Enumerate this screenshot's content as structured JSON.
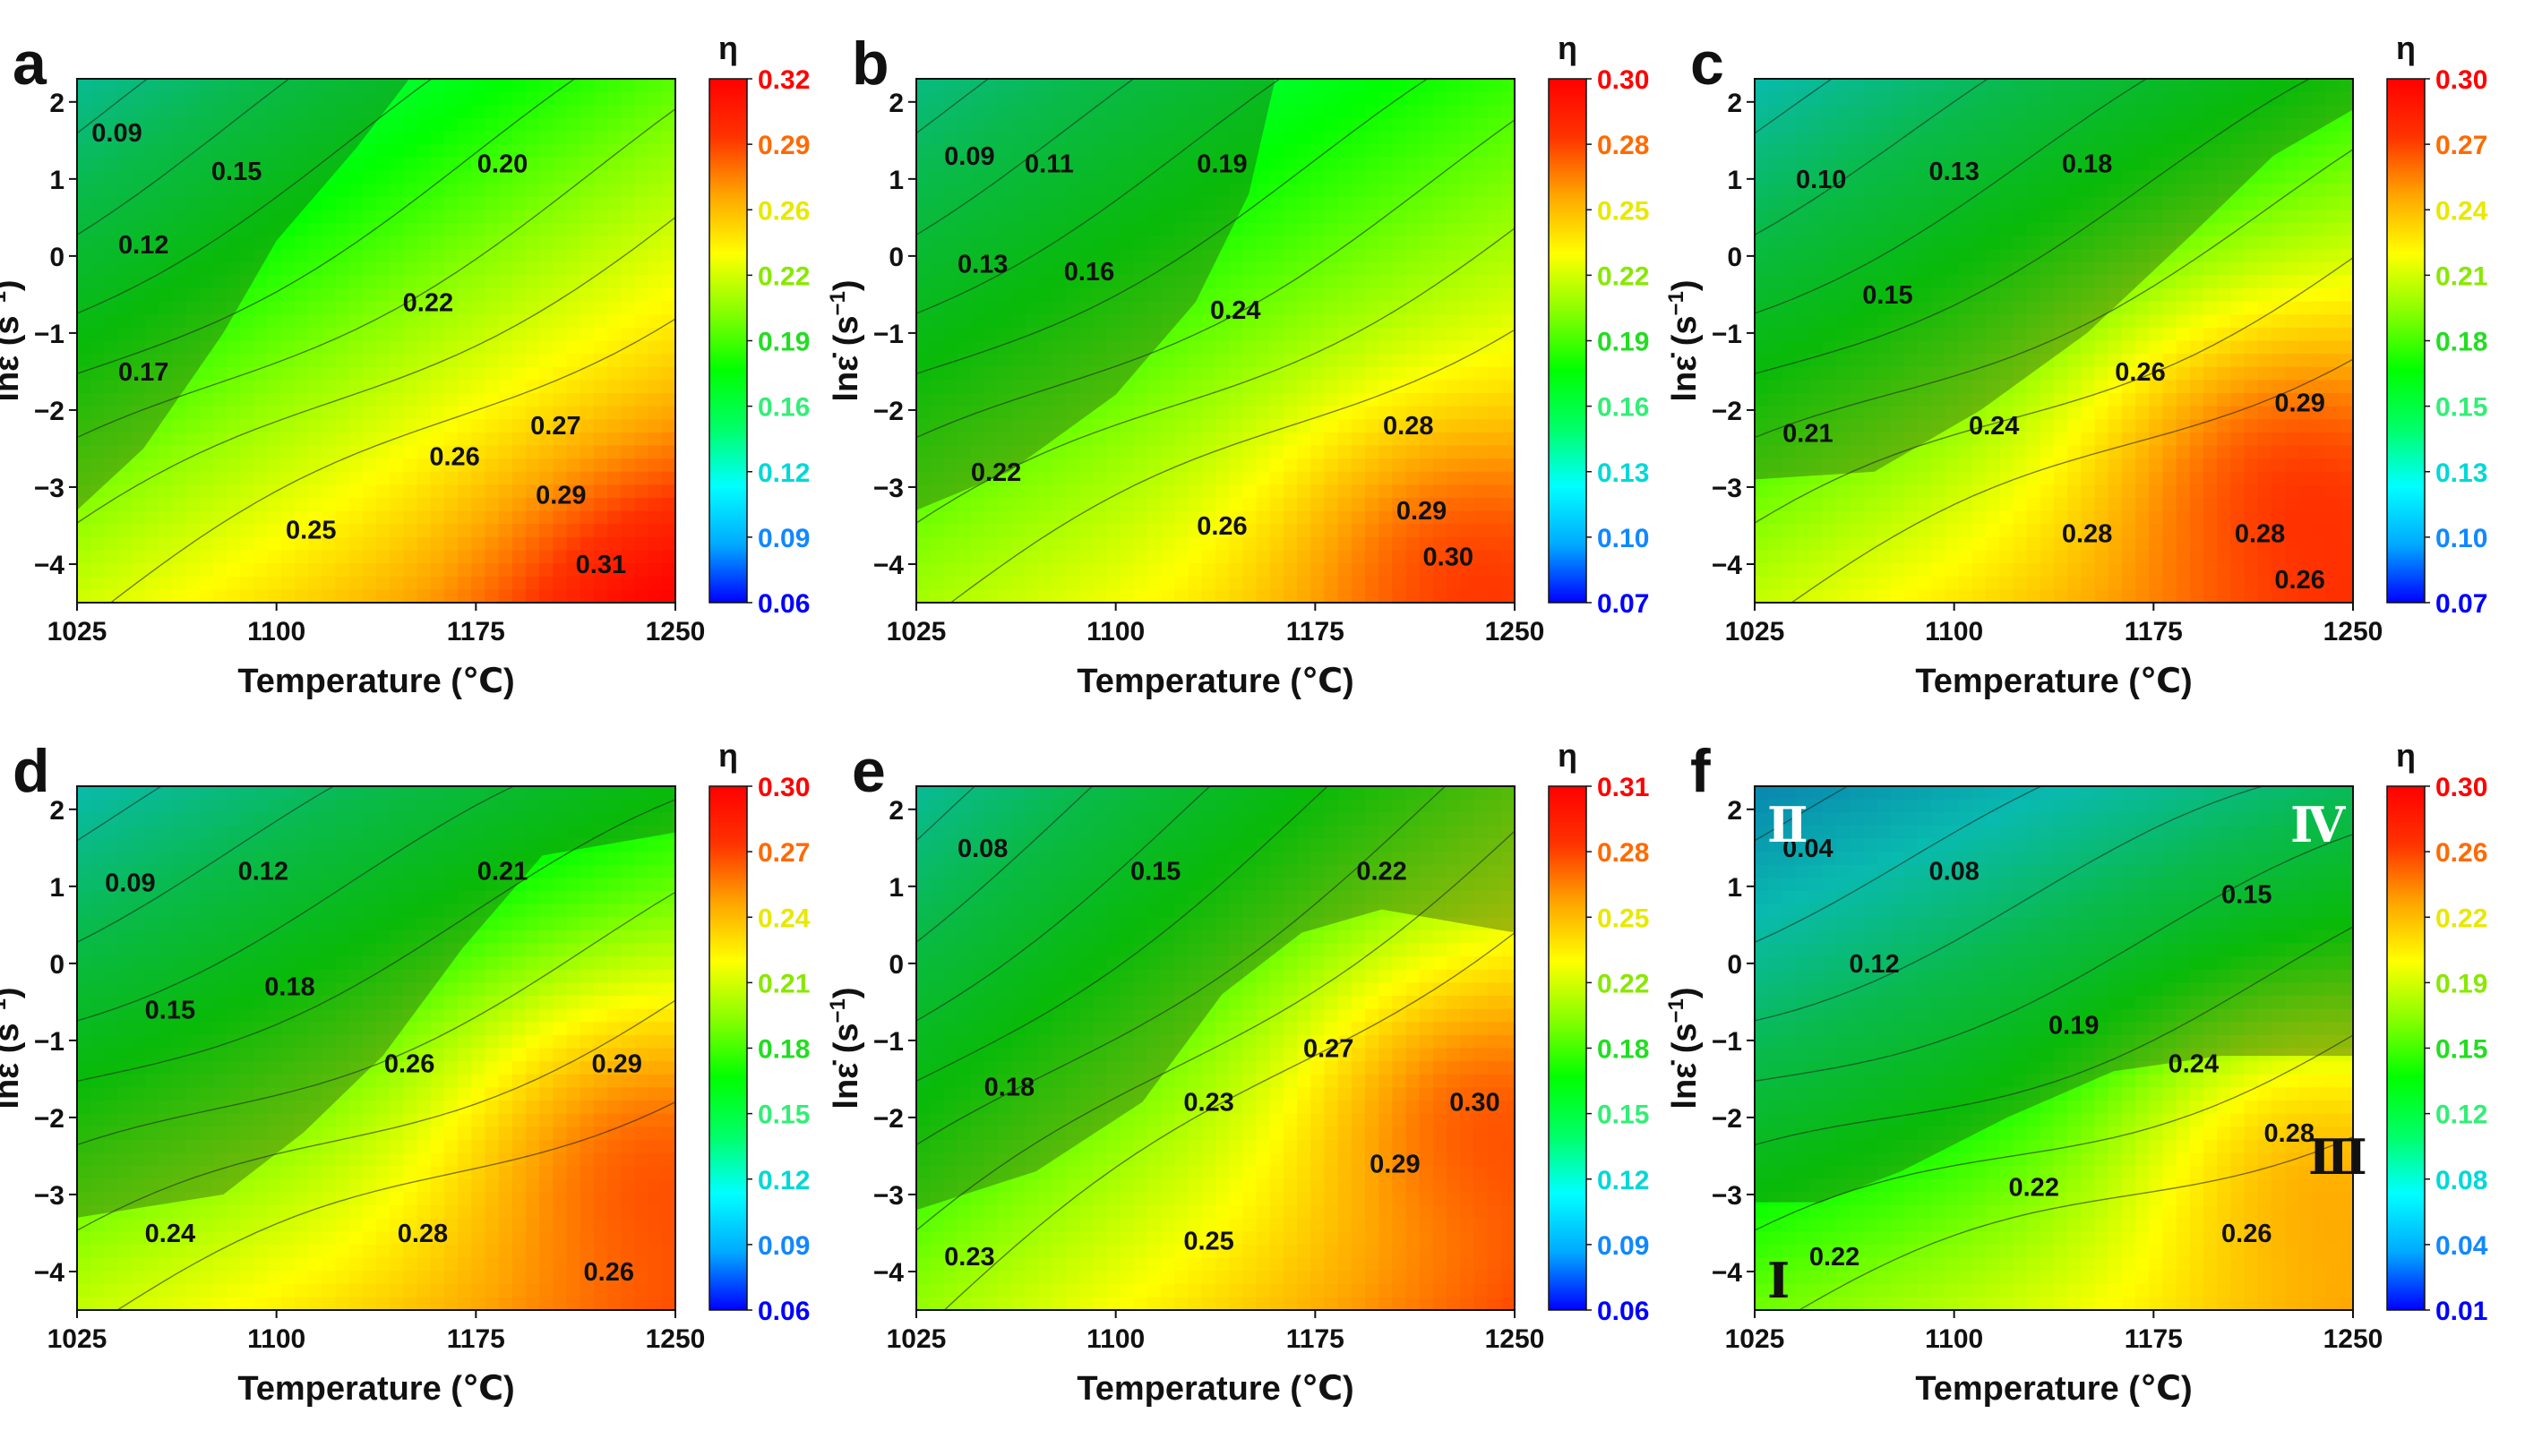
{
  "figure": {
    "xlabel": "Temperature (℃)",
    "ylabel_main": "lnε̇",
    "ylabel_unit": "(s",
    "ylabel_exp": "−1",
    "ylabel_close": ")",
    "colorbar_title": "η",
    "xticks": [
      "1025",
      "1100",
      "1175",
      "1250"
    ],
    "yticks": [
      "2",
      "1",
      "0",
      "−1",
      "−2",
      "−3",
      "−4"
    ]
  },
  "colors": {
    "colormap": [
      "#0000ff",
      "#00aaff",
      "#00ffff",
      "#00ff66",
      "#00ff00",
      "#88ff00",
      "#ffff00",
      "#ffa500",
      "#ff3300",
      "#ff0000"
    ],
    "unstable_shading": "#1a3a1a",
    "colorbar_label_colors": [
      "#ff0000",
      "#ff6a00",
      "#e8e800",
      "#88e800",
      "#22dd22",
      "#33ee77",
      "#00d8d8",
      "#1188ff",
      "#0000ff"
    ]
  },
  "chart_data": [
    {
      "panel": "a",
      "type": "heatmap",
      "xlabel": "Temperature (℃)",
      "ylabel": "lnε̇ (s⁻¹)",
      "xlim": [
        1025,
        1250
      ],
      "ylim": [
        -4.5,
        2.3
      ],
      "colorbar_title": "η",
      "colorbar_range": [
        0.06,
        0.32
      ],
      "colorbar_ticks": [
        "0.32",
        "0.29",
        "0.26",
        "0.22",
        "0.19",
        "0.16",
        "0.12",
        "0.09",
        "0.06"
      ],
      "contour_labels": [
        {
          "text": "0.09",
          "x": 1040,
          "y": 1.6
        },
        {
          "text": "0.15",
          "x": 1085,
          "y": 1.1
        },
        {
          "text": "0.20",
          "x": 1185,
          "y": 1.2
        },
        {
          "text": "0.12",
          "x": 1050,
          "y": 0.15
        },
        {
          "text": "0.22",
          "x": 1157,
          "y": -0.6
        },
        {
          "text": "0.17",
          "x": 1050,
          "y": -1.5
        },
        {
          "text": "0.27",
          "x": 1205,
          "y": -2.2
        },
        {
          "text": "0.26",
          "x": 1167,
          "y": -2.6
        },
        {
          "text": "0.29",
          "x": 1207,
          "y": -3.1
        },
        {
          "text": "0.25",
          "x": 1113,
          "y": -3.55
        },
        {
          "text": "0.31",
          "x": 1222,
          "y": -4.0
        }
      ],
      "field": {
        "bias": 0.18,
        "gx": 0.27,
        "gy": -0.38,
        "rel_lo": 0.02,
        "rel_hi": 0.99,
        "hot": {
          "x": 0.98,
          "y": 0.02,
          "amp": 0.12,
          "s": 0.28
        }
      },
      "unstable_region": [
        [
          1025,
          -3.3
        ],
        [
          1050,
          -2.5
        ],
        [
          1080,
          -1.0
        ],
        [
          1100,
          0.2
        ],
        [
          1130,
          1.4
        ],
        [
          1150,
          2.3
        ],
        [
          1025,
          2.3
        ]
      ]
    },
    {
      "panel": "b",
      "type": "heatmap",
      "xlabel": "Temperature (℃)",
      "ylabel": "lnε̇ (s⁻¹)",
      "xlim": [
        1025,
        1250
      ],
      "ylim": [
        -4.5,
        2.3
      ],
      "colorbar_title": "η",
      "colorbar_range": [
        0.07,
        0.3
      ],
      "colorbar_ticks": [
        "0.30",
        "0.28",
        "0.25",
        "0.22",
        "0.19",
        "0.16",
        "0.13",
        "0.10",
        "0.07"
      ],
      "contour_labels": [
        {
          "text": "0.09",
          "x": 1045,
          "y": 1.3
        },
        {
          "text": "0.11",
          "x": 1075,
          "y": 1.2
        },
        {
          "text": "0.19",
          "x": 1140,
          "y": 1.2
        },
        {
          "text": "0.13",
          "x": 1050,
          "y": -0.1
        },
        {
          "text": "0.16",
          "x": 1090,
          "y": -0.2
        },
        {
          "text": "0.24",
          "x": 1145,
          "y": -0.7
        },
        {
          "text": "0.22",
          "x": 1055,
          "y": -2.8
        },
        {
          "text": "0.28",
          "x": 1210,
          "y": -2.2
        },
        {
          "text": "0.29",
          "x": 1215,
          "y": -3.3
        },
        {
          "text": "0.26",
          "x": 1140,
          "y": -3.5
        },
        {
          "text": "0.30",
          "x": 1225,
          "y": -3.9
        }
      ],
      "field": {
        "bias": 0.17,
        "gx": 0.22,
        "gy": -0.32,
        "rel_lo": 0.02,
        "rel_hi": 0.99,
        "hot": {
          "x": 0.88,
          "y": 0.12,
          "amp": 0.13,
          "s": 0.28
        }
      },
      "unstable_region": [
        [
          1025,
          -3.3
        ],
        [
          1060,
          -2.8
        ],
        [
          1100,
          -1.8
        ],
        [
          1130,
          -0.6
        ],
        [
          1150,
          0.8
        ],
        [
          1160,
          2.3
        ],
        [
          1025,
          2.3
        ]
      ]
    },
    {
      "panel": "c",
      "type": "heatmap",
      "xlabel": "Temperature (℃)",
      "ylabel": "lnε̇ (s⁻¹)",
      "xlim": [
        1025,
        1250
      ],
      "ylim": [
        -4.5,
        2.3
      ],
      "colorbar_title": "η",
      "colorbar_range": [
        0.07,
        0.3
      ],
      "colorbar_ticks": [
        "0.30",
        "0.27",
        "0.24",
        "0.21",
        "0.18",
        "0.15",
        "0.13",
        "0.10",
        "0.07"
      ],
      "contour_labels": [
        {
          "text": "0.10",
          "x": 1050,
          "y": 1.0
        },
        {
          "text": "0.13",
          "x": 1100,
          "y": 1.1
        },
        {
          "text": "0.18",
          "x": 1150,
          "y": 1.2
        },
        {
          "text": "0.15",
          "x": 1075,
          "y": -0.5
        },
        {
          "text": "0.26",
          "x": 1170,
          "y": -1.5
        },
        {
          "text": "0.29",
          "x": 1230,
          "y": -1.9
        },
        {
          "text": "0.21",
          "x": 1045,
          "y": -2.3
        },
        {
          "text": "0.24",
          "x": 1115,
          "y": -2.2
        },
        {
          "text": "0.28",
          "x": 1150,
          "y": -3.6
        },
        {
          "text": "0.28",
          "x": 1215,
          "y": -3.6
        },
        {
          "text": "0.26",
          "x": 1230,
          "y": -4.2
        }
      ],
      "field": {
        "bias": 0.16,
        "gx": 0.25,
        "gy": -0.4,
        "rel_lo": 0.02,
        "rel_hi": 0.99,
        "hot": {
          "x": 0.85,
          "y": 0.3,
          "amp": 0.16,
          "s": 0.3
        }
      },
      "unstable_region": [
        [
          1025,
          -2.9
        ],
        [
          1070,
          -2.8
        ],
        [
          1110,
          -2.0
        ],
        [
          1150,
          -1.0
        ],
        [
          1190,
          0.3
        ],
        [
          1220,
          1.3
        ],
        [
          1250,
          1.9
        ],
        [
          1250,
          2.3
        ],
        [
          1025,
          2.3
        ]
      ]
    },
    {
      "panel": "d",
      "type": "heatmap",
      "xlabel": "Temperature (℃)",
      "ylabel": "lnε̇ (s⁻¹)",
      "xlim": [
        1025,
        1250
      ],
      "ylim": [
        -4.5,
        2.3
      ],
      "colorbar_title": "η",
      "colorbar_range": [
        0.06,
        0.3
      ],
      "colorbar_ticks": [
        "0.30",
        "0.27",
        "0.24",
        "0.21",
        "0.18",
        "0.15",
        "0.12",
        "0.09",
        "0.06"
      ],
      "contour_labels": [
        {
          "text": "0.09",
          "x": 1045,
          "y": 1.05
        },
        {
          "text": "0.12",
          "x": 1095,
          "y": 1.2
        },
        {
          "text": "0.21",
          "x": 1185,
          "y": 1.2
        },
        {
          "text": "0.15",
          "x": 1060,
          "y": -0.6
        },
        {
          "text": "0.18",
          "x": 1105,
          "y": -0.3
        },
        {
          "text": "0.26",
          "x": 1150,
          "y": -1.3
        },
        {
          "text": "0.29",
          "x": 1228,
          "y": -1.3
        },
        {
          "text": "0.24",
          "x": 1060,
          "y": -3.5
        },
        {
          "text": "0.28",
          "x": 1155,
          "y": -3.5
        },
        {
          "text": "0.26",
          "x": 1225,
          "y": -4.0
        }
      ],
      "field": {
        "bias": 0.16,
        "gx": 0.22,
        "gy": -0.4,
        "rel_lo": 0.02,
        "rel_hi": 0.99,
        "hot": {
          "x": 0.92,
          "y": 0.35,
          "amp": 0.16,
          "s": 0.3
        }
      },
      "unstable_region": [
        [
          1025,
          -3.3
        ],
        [
          1080,
          -3.0
        ],
        [
          1110,
          -2.2
        ],
        [
          1140,
          -1.2
        ],
        [
          1170,
          0.2
        ],
        [
          1200,
          1.4
        ],
        [
          1250,
          1.7
        ],
        [
          1250,
          2.3
        ],
        [
          1025,
          2.3
        ]
      ]
    },
    {
      "panel": "e",
      "type": "heatmap",
      "xlabel": "Temperature (℃)",
      "ylabel": "lnε̇ (s⁻¹)",
      "xlim": [
        1025,
        1250
      ],
      "ylim": [
        -4.5,
        2.3
      ],
      "colorbar_title": "η",
      "colorbar_range": [
        0.06,
        0.31
      ],
      "colorbar_ticks": [
        "0.31",
        "0.28",
        "0.25",
        "0.22",
        "0.18",
        "0.15",
        "0.12",
        "0.09",
        "0.06"
      ],
      "contour_labels": [
        {
          "text": "0.08",
          "x": 1050,
          "y": 1.5
        },
        {
          "text": "0.15",
          "x": 1115,
          "y": 1.2
        },
        {
          "text": "0.22",
          "x": 1200,
          "y": 1.2
        },
        {
          "text": "0.18",
          "x": 1060,
          "y": -1.6
        },
        {
          "text": "0.23",
          "x": 1135,
          "y": -1.8
        },
        {
          "text": "0.27",
          "x": 1180,
          "y": -1.1
        },
        {
          "text": "0.30",
          "x": 1235,
          "y": -1.8
        },
        {
          "text": "0.29",
          "x": 1205,
          "y": -2.6
        },
        {
          "text": "0.23",
          "x": 1045,
          "y": -3.8
        },
        {
          "text": "0.25",
          "x": 1135,
          "y": -3.6
        }
      ],
      "field": {
        "bias": 0.15,
        "gx": 0.3,
        "gy": -0.33,
        "rel_lo": 0.02,
        "rel_hi": 0.99,
        "hot": {
          "x": 0.9,
          "y": 0.42,
          "amp": 0.14,
          "s": 0.26
        }
      },
      "unstable_region": [
        [
          1025,
          -3.2
        ],
        [
          1070,
          -2.7
        ],
        [
          1110,
          -1.8
        ],
        [
          1140,
          -0.4
        ],
        [
          1170,
          0.4
        ],
        [
          1200,
          0.7
        ],
        [
          1250,
          0.4
        ],
        [
          1250,
          2.3
        ],
        [
          1025,
          2.3
        ]
      ]
    },
    {
      "panel": "f",
      "type": "heatmap",
      "xlabel": "Temperature (℃)",
      "ylabel": "lnε̇ (s⁻¹)",
      "xlim": [
        1025,
        1250
      ],
      "ylim": [
        -4.5,
        2.3
      ],
      "colorbar_title": "η",
      "colorbar_range": [
        0.01,
        0.3
      ],
      "colorbar_ticks": [
        "0.30",
        "0.26",
        "0.22",
        "0.19",
        "0.15",
        "0.12",
        "0.08",
        "0.04",
        "0.01"
      ],
      "region_labels": [
        "Ⅱ",
        "Ⅳ",
        "Ⅰ",
        "Ⅲ"
      ],
      "contour_labels": [
        {
          "text": "0.04",
          "x": 1045,
          "y": 1.5
        },
        {
          "text": "0.08",
          "x": 1100,
          "y": 1.2
        },
        {
          "text": "0.15",
          "x": 1210,
          "y": 0.9
        },
        {
          "text": "0.12",
          "x": 1070,
          "y": 0.0
        },
        {
          "text": "0.19",
          "x": 1145,
          "y": -0.8
        },
        {
          "text": "0.24",
          "x": 1190,
          "y": -1.3
        },
        {
          "text": "0.28",
          "x": 1226,
          "y": -2.2
        },
        {
          "text": "0.22",
          "x": 1130,
          "y": -2.9
        },
        {
          "text": "0.22",
          "x": 1055,
          "y": -3.8
        },
        {
          "text": "0.26",
          "x": 1210,
          "y": -3.5
        }
      ],
      "field": {
        "bias": 0.08,
        "gx": 0.2,
        "gy": -0.42,
        "rel_lo": 0.0,
        "rel_hi": 0.99,
        "hot": {
          "x": 0.9,
          "y": 0.33,
          "amp": 0.16,
          "s": 0.3
        }
      },
      "unstable_region": [
        [
          1025,
          -3.1
        ],
        [
          1050,
          -3.1
        ],
        [
          1080,
          -2.7
        ],
        [
          1120,
          -2.0
        ],
        [
          1160,
          -1.4
        ],
        [
          1200,
          -1.2
        ],
        [
          1250,
          -1.2
        ],
        [
          1250,
          2.3
        ],
        [
          1025,
          2.3
        ]
      ]
    }
  ]
}
